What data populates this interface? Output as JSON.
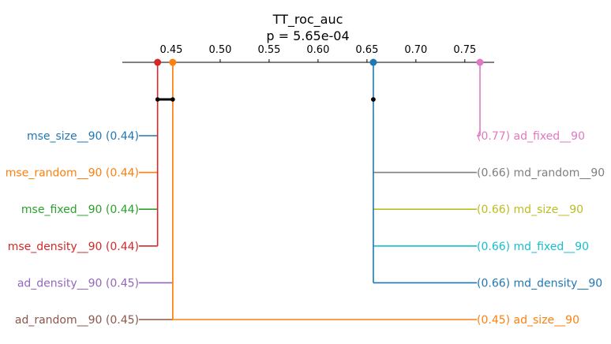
{
  "chart_data": {
    "type": "critical-difference",
    "title": "TT_roc_auc",
    "subtitle": "p = 5.65e-04",
    "xlim": [
      0.4,
      0.78
    ],
    "ticks": [
      0.45,
      0.5,
      0.55,
      0.6,
      0.65,
      0.7,
      0.75
    ],
    "tick_labels": [
      "0.45",
      "0.50",
      "0.55",
      "0.60",
      "0.65",
      "0.70",
      "0.75"
    ],
    "left_methods": [
      {
        "name": "mse_size__90",
        "value_label": "(0.44)",
        "x": 0.436,
        "color": "#1f77b4",
        "line_from": "mse_density__90"
      },
      {
        "name": "mse_random__90",
        "value_label": "(0.44)",
        "x": 0.436,
        "color": "#ff7f0e",
        "line_from": "mse_density__90"
      },
      {
        "name": "mse_fixed__90",
        "value_label": "(0.44)",
        "x": 0.436,
        "color": "#2ca02c",
        "line_from": "mse_density__90"
      },
      {
        "name": "mse_density__90",
        "value_label": "(0.44)",
        "x": 0.436,
        "color": "#d62728",
        "line_from": "mse_density__90"
      },
      {
        "name": "ad_density__90",
        "value_label": "(0.45)",
        "x": 0.4515,
        "color": "#9467bd",
        "line_from": "ad_size__90"
      },
      {
        "name": "ad_random__90",
        "value_label": "(0.45)",
        "x": 0.4515,
        "color": "#8c564b",
        "line_from": "ad_size__90"
      }
    ],
    "right_methods": [
      {
        "name": "ad_fixed__90",
        "value_label": "(0.77)",
        "x": 0.7655,
        "color": "#e377c2",
        "line_from": "ad_fixed__90"
      },
      {
        "name": "md_random__90",
        "value_label": "(0.66)",
        "x": 0.6565,
        "color": "#7f7f7f",
        "line_from": "md_density__90"
      },
      {
        "name": "md_size__90",
        "value_label": "(0.66)",
        "x": 0.6565,
        "color": "#bcbd22",
        "line_from": "md_density__90"
      },
      {
        "name": "md_fixed__90",
        "value_label": "(0.66)",
        "x": 0.6565,
        "color": "#17becf",
        "line_from": "md_density__90"
      },
      {
        "name": "md_density__90",
        "value_label": "(0.66)",
        "x": 0.6565,
        "color": "#1f77b4",
        "line_from": "md_density__90"
      },
      {
        "name": "ad_size__90",
        "value_label": "(0.45)",
        "x": 0.4515,
        "color": "#ff7f0e",
        "line_from": "ad_size__90"
      }
    ],
    "group_markers": [
      {
        "x": 0.436,
        "color": "#d62728"
      },
      {
        "x": 0.4515,
        "color": "#ff7f0e"
      },
      {
        "x": 0.6565,
        "color": "#1f77b4"
      },
      {
        "x": 0.7655,
        "color": "#e377c2"
      }
    ],
    "cliques": [
      {
        "x_start": 0.436,
        "x_end": 0.4515
      },
      {
        "x_start": 0.6565,
        "x_end": 0.6565
      }
    ]
  }
}
